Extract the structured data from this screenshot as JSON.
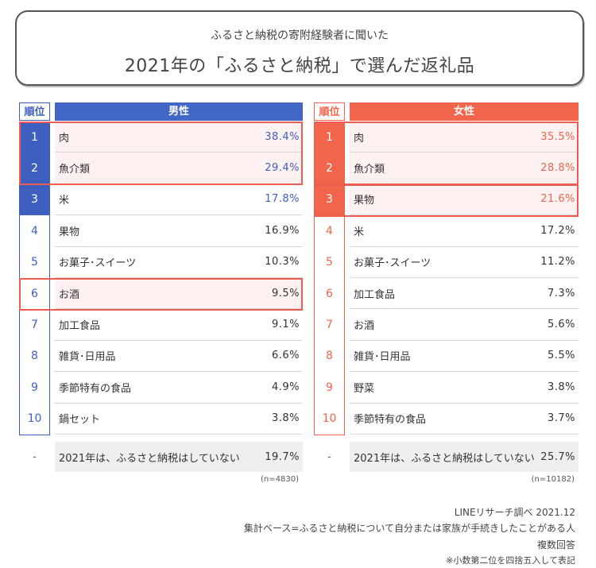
{
  "header": {
    "subtitle": "ふるさと納税の寄附経験者に聞いた",
    "title": "2021年の「ふるさと納税」で選んだ返礼品"
  },
  "colors": {
    "male": "#4166c6",
    "female": "#f0654c",
    "highlight": "#ee5d52"
  },
  "chart_data": [
    {
      "type": "table",
      "title": "男性",
      "columns": [
        "順位",
        "男性"
      ],
      "rows": [
        {
          "rank": "1",
          "item": "肉",
          "value": "38.4%"
        },
        {
          "rank": "2",
          "item": "魚介類",
          "value": "29.4%"
        },
        {
          "rank": "3",
          "item": "米",
          "value": "17.8%"
        },
        {
          "rank": "4",
          "item": "果物",
          "value": "16.9%"
        },
        {
          "rank": "5",
          "item": "お菓子･スイーツ",
          "value": "10.3%"
        },
        {
          "rank": "6",
          "item": "お酒",
          "value": "9.5%"
        },
        {
          "rank": "7",
          "item": "加工食品",
          "value": "9.1%"
        },
        {
          "rank": "8",
          "item": "雑貨･日用品",
          "value": "6.6%"
        },
        {
          "rank": "9",
          "item": "季節特有の食品",
          "value": "4.9%"
        },
        {
          "rank": "10",
          "item": "鍋セット",
          "value": "3.8%"
        }
      ],
      "none_row": {
        "rank": "-",
        "item": "2021年は、ふるさと納税はしていない",
        "value": "19.7%"
      },
      "n": "(n=4830)"
    },
    {
      "type": "table",
      "title": "女性",
      "columns": [
        "順位",
        "女性"
      ],
      "rows": [
        {
          "rank": "1",
          "item": "肉",
          "value": "35.5%"
        },
        {
          "rank": "2",
          "item": "魚介類",
          "value": "28.8%"
        },
        {
          "rank": "3",
          "item": "果物",
          "value": "21.6%"
        },
        {
          "rank": "4",
          "item": "米",
          "value": "17.2%"
        },
        {
          "rank": "5",
          "item": "お菓子･スイーツ",
          "value": "11.2%"
        },
        {
          "rank": "6",
          "item": "加工食品",
          "value": "7.3%"
        },
        {
          "rank": "7",
          "item": "お酒",
          "value": "5.6%"
        },
        {
          "rank": "8",
          "item": "雑貨･日用品",
          "value": "5.5%"
        },
        {
          "rank": "9",
          "item": "野菜",
          "value": "3.8%"
        },
        {
          "rank": "10",
          "item": "季節特有の食品",
          "value": "3.7%"
        }
      ],
      "none_row": {
        "rank": "-",
        "item": "2021年は、ふるさと納税はしていない",
        "value": "25.7%"
      },
      "n": "(n=10182)"
    }
  ],
  "footer": {
    "source": "LINEリサーチ調べ 2021.12",
    "base": "集計ベース=ふるさと納税について自分または家族が手続きしたことがある人",
    "answer_type": "複数回答",
    "note": "※小数第二位を四捨五入して表記"
  }
}
